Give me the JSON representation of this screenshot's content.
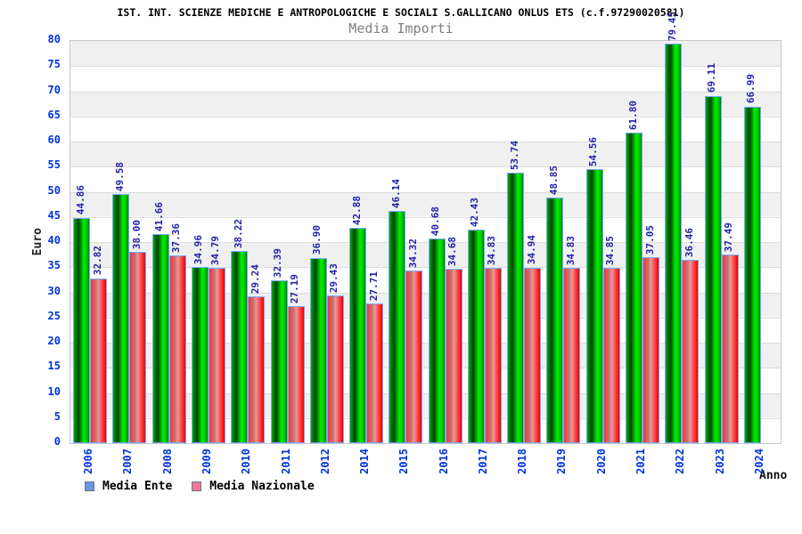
{
  "page": {
    "background": "#ffffff"
  },
  "chart_data": {
    "type": "bar",
    "title": "IST. INT. SCIENZE MEDICHE E ANTROPOLOGICHE E SOCIALI S.GALLICANO ONLUS ETS (c.f.97290020581)",
    "subtitle": "Media Importi",
    "ylabel": "Euro",
    "xlabel": "Anno",
    "ylim": [
      0,
      80
    ],
    "ytick_step": 5,
    "grid": "horizontal-bands-alternating-gray-white",
    "legend_position": "bottom-left",
    "categories": [
      "2006",
      "2007",
      "2008",
      "2009",
      "2010",
      "2011",
      "2012",
      "2014",
      "2015",
      "2016",
      "2017",
      "2018",
      "2019",
      "2020",
      "2021",
      "2022",
      "2023",
      "2024"
    ],
    "series": [
      {
        "name": "Media Ente",
        "legend_color": "#6699dd",
        "bar_color": "#00cc00",
        "values": [
          44.86,
          49.58,
          41.66,
          34.96,
          38.22,
          32.39,
          36.9,
          42.88,
          46.14,
          40.68,
          42.43,
          53.74,
          48.85,
          54.56,
          61.8,
          79.45,
          69.11,
          66.99
        ]
      },
      {
        "name": "Media Nazionale",
        "legend_color": "#ee7799",
        "bar_color": "#ff3333",
        "values": [
          32.82,
          38.0,
          37.36,
          34.79,
          29.24,
          27.19,
          29.43,
          27.71,
          34.32,
          34.68,
          34.83,
          34.94,
          34.83,
          34.85,
          37.05,
          36.46,
          37.49,
          null
        ]
      }
    ],
    "colors": {
      "tick_label": "#0033dd",
      "value_label": "#2222aa",
      "title": "#000000",
      "subtitle": "#808080",
      "bar_border": "#77aaff",
      "band_gray": "#f0f0f0"
    }
  }
}
